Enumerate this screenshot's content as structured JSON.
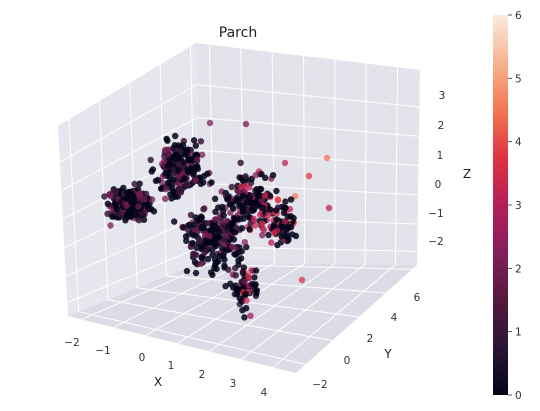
{
  "chart_data": {
    "type": "scatter",
    "projection": "3d",
    "title": "Parch",
    "xlabel": "X",
    "ylabel": "Y",
    "zlabel": "Z",
    "x_ticks": [
      "−2",
      "−1",
      "0",
      "1",
      "2",
      "3",
      "4"
    ],
    "y_ticks": [
      "−2",
      "0",
      "2",
      "4",
      "6"
    ],
    "z_ticks": [
      "−2",
      "−1",
      "0",
      "1",
      "2",
      "3"
    ],
    "xlim": [
      -2.4,
      4.4
    ],
    "ylim": [
      -2.6,
      6.6
    ],
    "zlim": [
      -2.8,
      3.2
    ],
    "grid": true,
    "colorbar": {
      "min": 0,
      "max": 6,
      "ticks": [
        "0",
        "1",
        "2",
        "3",
        "4",
        "5",
        "6"
      ],
      "colormap": "rocket",
      "placement": "right"
    },
    "color_stops": [
      "#03051a",
      "#2a1636",
      "#55193b",
      "#841e5a",
      "#b41f58",
      "#e13342",
      "#f37651",
      "#f6b48e",
      "#faebdd"
    ],
    "note_points": "1000 points; colour encodes Parch value 0–6, most points at 0–2"
  }
}
